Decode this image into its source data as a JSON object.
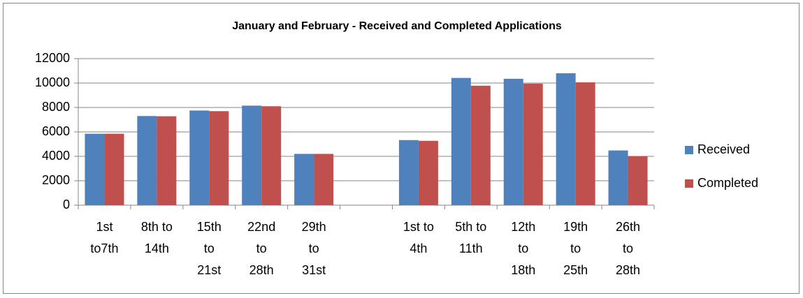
{
  "chart_data": {
    "type": "bar",
    "title": "January and February - Received and Completed Applications",
    "categories": [
      "1st\nto7th",
      "8th to\n14th",
      "15th\nto\n21st",
      "22nd\nto\n28th",
      "29th\nto\n31st",
      null,
      "1st to\n4th",
      "5th to\n11th",
      "12th\nto\n18th",
      "19th\nto\n25th",
      "26th\nto\n28th"
    ],
    "series": [
      {
        "name": "Received",
        "color": "#4f81bd",
        "values": [
          5850,
          7300,
          7750,
          8150,
          4200,
          null,
          5330,
          10420,
          10350,
          10800,
          4480
        ]
      },
      {
        "name": "Completed",
        "color": "#c0504d",
        "values": [
          5850,
          7280,
          7700,
          8100,
          4200,
          null,
          5270,
          9780,
          9950,
          10060,
          4000
        ]
      }
    ],
    "ylim": [
      0,
      12000
    ],
    "yticks": [
      0,
      2000,
      4000,
      6000,
      8000,
      10000,
      12000
    ],
    "grid": true,
    "legend": "right"
  }
}
